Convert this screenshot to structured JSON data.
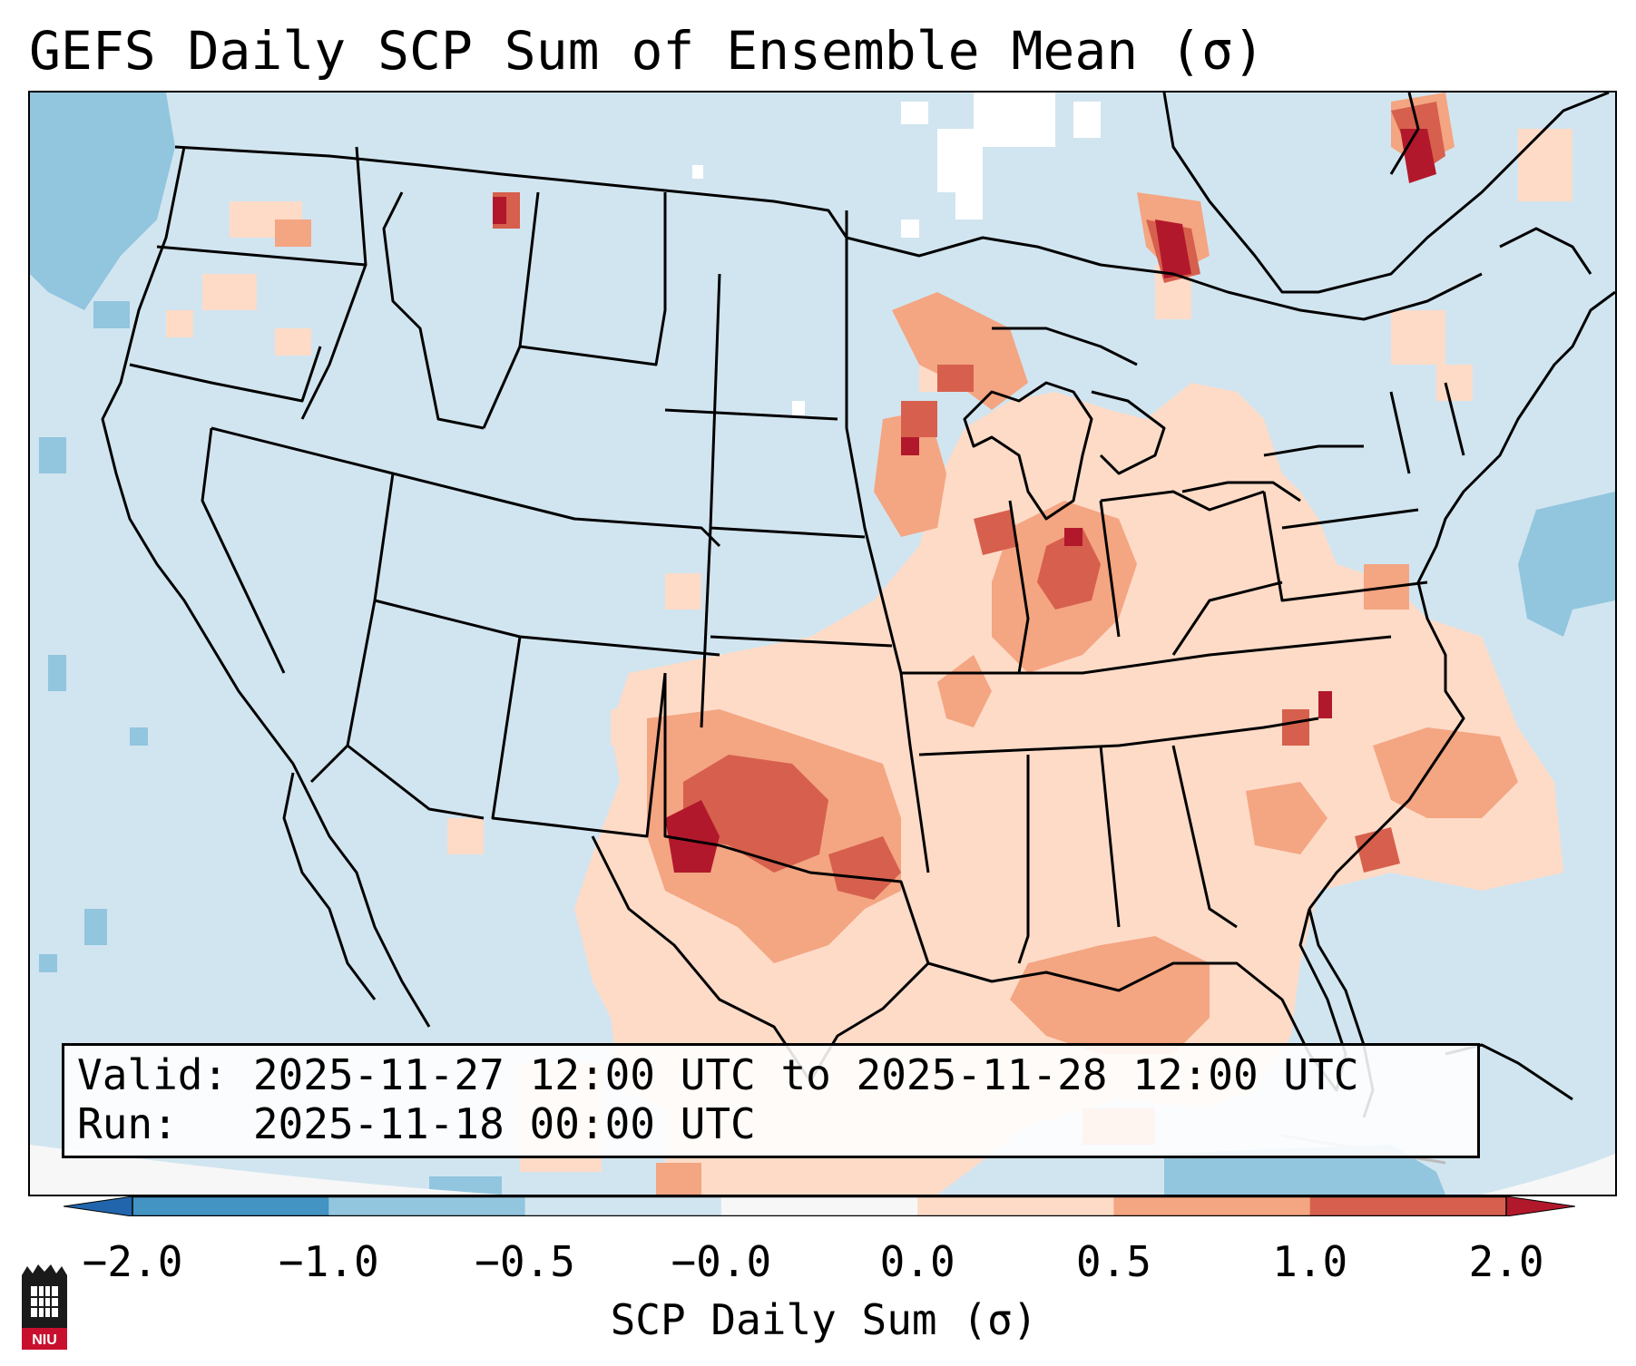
{
  "title": "GEFS Daily SCP Sum of Ensemble Mean (σ)",
  "info": {
    "valid": "Valid: 2025-11-27 12:00 UTC to 2025-11-28 12:00 UTC",
    "run": "Run:   2025-11-18 00:00 UTC"
  },
  "colorbar": {
    "label": "SCP Daily Sum (σ)",
    "ticks": [
      "−2.0",
      "−1.0",
      "−0.5",
      "−0.0",
      "0.0",
      "0.5",
      "1.0",
      "2.0"
    ],
    "bins": [
      {
        "range": "< -2.0",
        "color": "#2166ac"
      },
      {
        "range": "-2.0 to -1.0",
        "color": "#4393c3"
      },
      {
        "range": "-1.0 to -0.5",
        "color": "#92c5de"
      },
      {
        "range": "-0.5 to -0.0",
        "color": "#d1e5f0"
      },
      {
        "range": "-0.0 to 0.0",
        "color": "#f7f7f7"
      },
      {
        "range": "0.0 to 0.5",
        "color": "#fddbc7"
      },
      {
        "range": "0.5 to 1.0",
        "color": "#f4a582"
      },
      {
        "range": "1.0 to 2.0",
        "color": "#d6604d"
      },
      {
        "range": "> 2.0",
        "color": "#b2182b"
      }
    ]
  },
  "logo": {
    "text": "NIU"
  }
}
